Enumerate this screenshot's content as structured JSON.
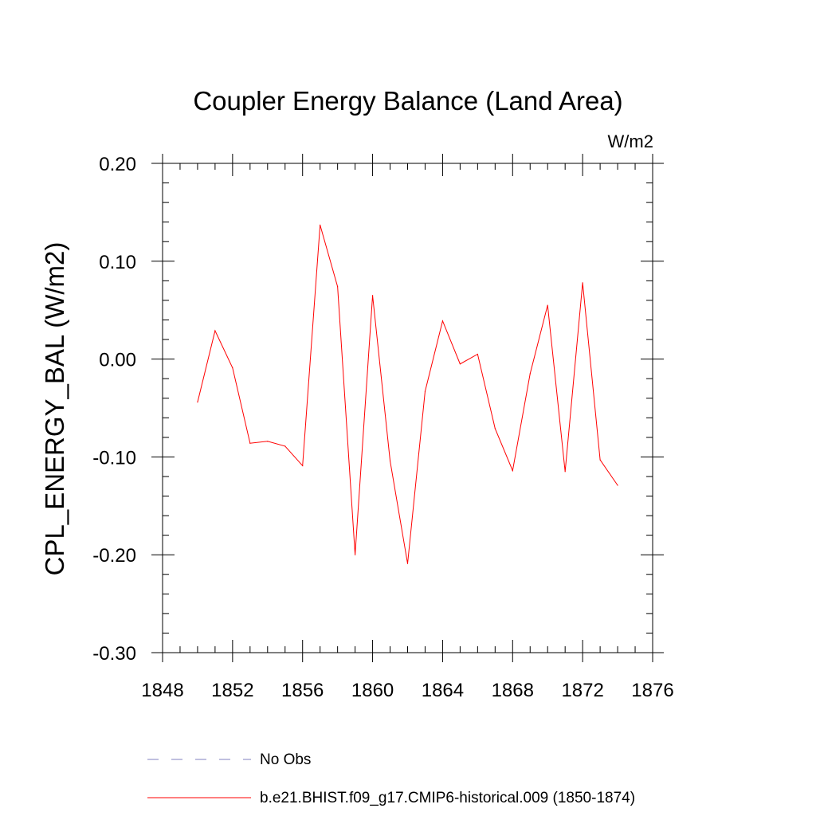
{
  "chart_data": {
    "type": "line",
    "title": "Coupler Energy Balance (Land Area)",
    "units_label": "W/m2",
    "xlabel": "",
    "ylabel": "CPL_ENERGY_BAL  (W/m2)",
    "xlim": [
      1848,
      1876
    ],
    "ylim": [
      -0.3,
      0.2
    ],
    "x_ticks": [
      1848,
      1852,
      1856,
      1860,
      1864,
      1868,
      1872,
      1876
    ],
    "y_ticks": [
      -0.3,
      -0.2,
      -0.1,
      0.0,
      0.1,
      0.2
    ],
    "y_tick_labels": [
      "-0.30",
      "-0.20",
      "-0.10",
      "0.00",
      "0.10",
      "0.20"
    ],
    "grid": false,
    "legend_position": "bottom",
    "series": [
      {
        "name": "b.e21.BHIST.f09_g17.CMIP6-historical.009 (1850-1874)",
        "color": "#ff0000",
        "style": "solid",
        "x": [
          1850,
          1851,
          1852,
          1853,
          1854,
          1855,
          1856,
          1857,
          1858,
          1859,
          1860,
          1861,
          1862,
          1863,
          1864,
          1865,
          1866,
          1867,
          1868,
          1869,
          1870,
          1871,
          1872,
          1873,
          1874
        ],
        "values": [
          -0.044,
          0.029,
          -0.009,
          -0.086,
          -0.084,
          -0.089,
          -0.109,
          0.137,
          0.074,
          -0.2,
          0.065,
          -0.104,
          -0.209,
          -0.033,
          0.039,
          -0.005,
          0.005,
          -0.071,
          -0.114,
          -0.015,
          0.055,
          -0.115,
          0.078,
          -0.103,
          -0.129
        ]
      }
    ],
    "legend": [
      {
        "label": "No Obs",
        "color": "#8080c0",
        "style": "dashed"
      },
      {
        "label": "b.e21.BHIST.f09_g17.CMIP6-historical.009 (1850-1874)",
        "color": "#ff0000",
        "style": "solid"
      }
    ]
  }
}
